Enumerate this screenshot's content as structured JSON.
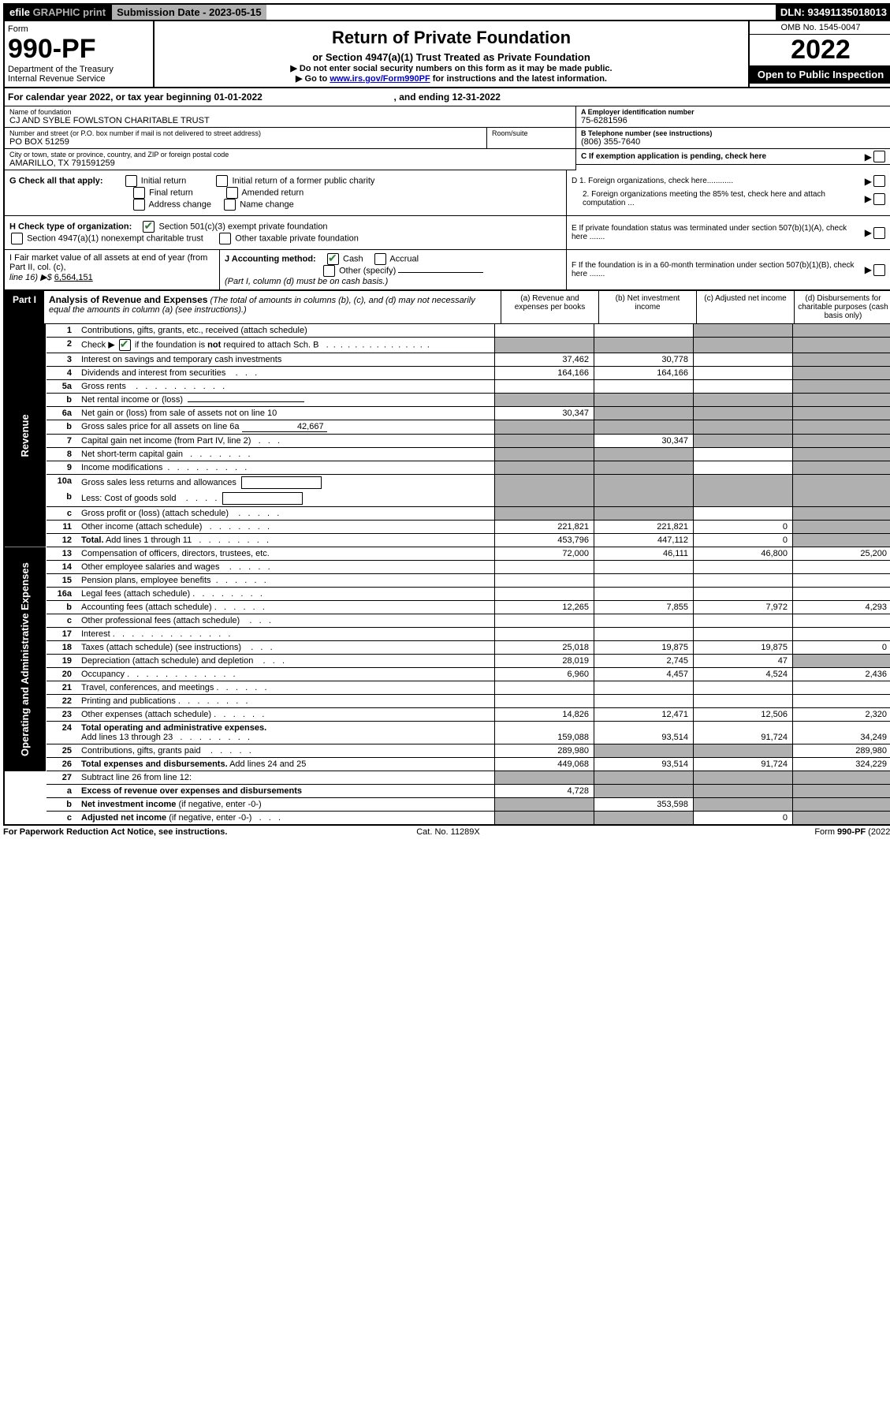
{
  "top": {
    "efile_prefix": "efile",
    "efile_suffix": " GRAPHIC print",
    "submission_date_label": "Submission Date - 2023-05-15",
    "dln": "DLN: 93491135018013"
  },
  "header": {
    "form_label": "Form",
    "form_number": "990-PF",
    "dept1": "Department of the Treasury",
    "dept2": "Internal Revenue Service",
    "title": "Return of Private Foundation",
    "subtitle": "or Section 4947(a)(1) Trust Treated as Private Foundation",
    "note1": "▶ Do not enter social security numbers on this form as it may be made public.",
    "note2_pre": "▶ Go to ",
    "note2_link": "www.irs.gov/Form990PF",
    "note2_post": " for instructions and the latest information.",
    "omb": "OMB No. 1545-0047",
    "year": "2022",
    "open": "Open to Public Inspection"
  },
  "calyear": {
    "pre": "For calendar year 2022, or tax year beginning ",
    "begin": "01-01-2022",
    "mid": " , and ending ",
    "end": "12-31-2022"
  },
  "entity": {
    "name_label": "Name of foundation",
    "name": "CJ AND SYBLE FOWLSTON CHARITABLE TRUST",
    "addr_label": "Number and street (or P.O. box number if mail is not delivered to street address)",
    "addr": "PO BOX 51259",
    "room_label": "Room/suite",
    "city_label": "City or town, state or province, country, and ZIP or foreign postal code",
    "city": "AMARILLO, TX  791591259",
    "a_label": "A Employer identification number",
    "a_val": "75-6281596",
    "b_label": "B Telephone number (see instructions)",
    "b_val": "(806) 355-7640",
    "c_label": "C If exemption application is pending, check here"
  },
  "g": {
    "label": "G Check all that apply:",
    "o1": "Initial return",
    "o2": "Final return",
    "o3": "Address change",
    "o4": "Initial return of a former public charity",
    "o5": "Amended return",
    "o6": "Name change"
  },
  "d": {
    "d1": "D 1. Foreign organizations, check here............",
    "d2": "2. Foreign organizations meeting the 85% test, check here and attach computation ..."
  },
  "h": {
    "label": "H Check type of organization:",
    "o1": "Section 501(c)(3) exempt private foundation",
    "o2": "Section 4947(a)(1) nonexempt charitable trust",
    "o3": "Other taxable private foundation"
  },
  "e": {
    "text": "E  If private foundation status was terminated under section 507(b)(1)(A), check here ......."
  },
  "i": {
    "label": "I Fair market value of all assets at end of year (from Part II, col. (c),",
    "line": "line 16) ▶$",
    "val": "6,564,151"
  },
  "j": {
    "label": "J Accounting method:",
    "o1": "Cash",
    "o2": "Accrual",
    "o3": "Other (specify)",
    "note": "(Part I, column (d) must be on cash basis.)"
  },
  "f": {
    "text": "F  If the foundation is in a 60-month termination under section 507(b)(1)(B), check here ......."
  },
  "part1": {
    "label": "Part I",
    "title": "Analysis of Revenue and Expenses",
    "title_note": " (The total of amounts in columns (b), (c), and (d) may not necessarily equal the amounts in column (a) (see instructions).)",
    "col_a": "(a) Revenue and expenses per books",
    "col_b": "(b) Net investment income",
    "col_c": "(c) Adjusted net income",
    "col_d": "(d) Disbursements for charitable purposes (cash basis only)"
  },
  "sides": {
    "revenue": "Revenue",
    "expenses": "Operating and Administrative Expenses"
  },
  "rows": [
    {
      "n": "1",
      "d": "",
      "a": "",
      "b": "",
      "c": "",
      "cs": true,
      "ds": true
    },
    {
      "n": "2",
      "d": "",
      "a": "",
      "b": "",
      "c": "",
      "as": true,
      "bs": true,
      "cs": true,
      "ds": true
    },
    {
      "n": "3",
      "d": "",
      "a": "37,462",
      "b": "30,778",
      "c": "",
      "ds": true
    },
    {
      "n": "4",
      "d": "",
      "a": "164,166",
      "b": "164,166",
      "c": "",
      "ds": true
    },
    {
      "n": "5a",
      "d": "",
      "a": "",
      "b": "",
      "c": "",
      "ds": true
    },
    {
      "n": "b",
      "d": "",
      "a": "",
      "b": "",
      "c": "",
      "as": true,
      "bs": true,
      "cs": true,
      "ds": true
    },
    {
      "n": "6a",
      "d": "",
      "a": "30,347",
      "b": "",
      "c": "",
      "bs": true,
      "cs": true,
      "ds": true
    },
    {
      "n": "b",
      "d": "",
      "a": "",
      "b": "",
      "c": "",
      "as": true,
      "bs": true,
      "cs": true,
      "ds": true
    },
    {
      "n": "7",
      "d": "",
      "a": "",
      "b": "30,347",
      "c": "",
      "as": true,
      "cs": true,
      "ds": true
    },
    {
      "n": "8",
      "d": "",
      "a": "",
      "b": "",
      "c": "",
      "as": true,
      "bs": true,
      "ds": true
    },
    {
      "n": "9",
      "d": "",
      "a": "",
      "b": "",
      "c": "",
      "as": true,
      "bs": true,
      "ds": true
    },
    {
      "n": "10a",
      "d": "",
      "a": "",
      "b": "",
      "c": "",
      "as": true,
      "bs": true,
      "cs": true,
      "ds": true,
      "nb": true
    },
    {
      "n": "b",
      "d": "",
      "a": "",
      "b": "",
      "c": "",
      "as": true,
      "bs": true,
      "cs": true,
      "ds": true
    },
    {
      "n": "c",
      "d": "",
      "a": "",
      "b": "",
      "c": "",
      "as": true,
      "bs": true,
      "ds": true
    },
    {
      "n": "11",
      "d": "",
      "a": "221,821",
      "b": "221,821",
      "c": "0",
      "ds": true
    },
    {
      "n": "12",
      "d": "",
      "a": "453,796",
      "b": "447,112",
      "c": "0",
      "ds": true
    }
  ],
  "exp_rows": [
    {
      "n": "13",
      "d": "25,200",
      "a": "72,000",
      "b": "46,111",
      "c": "46,800"
    },
    {
      "n": "14",
      "d": "",
      "a": "",
      "b": "",
      "c": ""
    },
    {
      "n": "15",
      "d": "",
      "a": "",
      "b": "",
      "c": ""
    },
    {
      "n": "16a",
      "d": "",
      "a": "",
      "b": "",
      "c": ""
    },
    {
      "n": "b",
      "d": "4,293",
      "a": "12,265",
      "b": "7,855",
      "c": "7,972"
    },
    {
      "n": "c",
      "d": "",
      "a": "",
      "b": "",
      "c": ""
    },
    {
      "n": "17",
      "d": "",
      "a": "",
      "b": "",
      "c": ""
    },
    {
      "n": "18",
      "d": "0",
      "a": "25,018",
      "b": "19,875",
      "c": "19,875"
    },
    {
      "n": "19",
      "d": "",
      "a": "28,019",
      "b": "2,745",
      "c": "47",
      "ds": true
    },
    {
      "n": "20",
      "d": "2,436",
      "a": "6,960",
      "b": "4,457",
      "c": "4,524"
    },
    {
      "n": "21",
      "d": "",
      "a": "",
      "b": "",
      "c": ""
    },
    {
      "n": "22",
      "d": "",
      "a": "",
      "b": "",
      "c": ""
    },
    {
      "n": "23",
      "d": "2,320",
      "a": "14,826",
      "b": "12,471",
      "c": "12,506"
    },
    {
      "n": "24",
      "d": "34,249",
      "a": "159,088",
      "b": "93,514",
      "c": "91,724"
    },
    {
      "n": "25",
      "d": "289,980",
      "a": "289,980",
      "b": "",
      "c": "",
      "bs": true,
      "cs": true
    },
    {
      "n": "26",
      "d": "324,229",
      "a": "449,068",
      "b": "93,514",
      "c": "91,724"
    }
  ],
  "bottom_rows": [
    {
      "n": "27",
      "d": "",
      "a": "",
      "b": "",
      "c": "",
      "as": true,
      "bs": true,
      "cs": true,
      "ds": true
    },
    {
      "n": "a",
      "d": "",
      "a": "4,728",
      "b": "",
      "c": "",
      "bs": true,
      "cs": true,
      "ds": true
    },
    {
      "n": "b",
      "d": "",
      "a": "",
      "b": "353,598",
      "c": "",
      "as": true,
      "cs": true,
      "ds": true
    },
    {
      "n": "c",
      "d": "",
      "a": "",
      "b": "",
      "c": "0",
      "as": true,
      "bs": true,
      "ds": true
    }
  ],
  "footer": {
    "left": "For Paperwork Reduction Act Notice, see instructions.",
    "center": "Cat. No. 11289X",
    "right": "Form 990-PF (2022)"
  },
  "colors": {
    "black": "#000000",
    "gray": "#b0b0b0",
    "green": "#2e7d32",
    "link": "#0000cc"
  }
}
